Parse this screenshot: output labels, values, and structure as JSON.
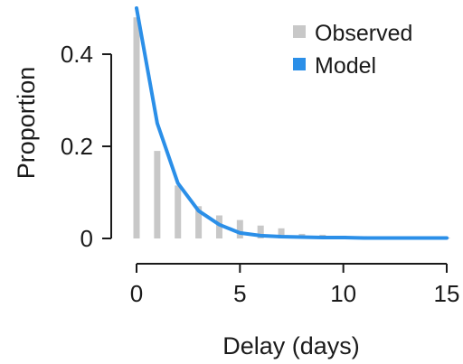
{
  "chart_data": {
    "type": "bar",
    "xlabel": "Delay (days)",
    "ylabel": "Proportion",
    "xlim": [
      0,
      15
    ],
    "ylim": [
      0,
      0.5
    ],
    "xticks": [
      0,
      5,
      10,
      15
    ],
    "yticks": [
      0,
      0.2,
      0.4
    ],
    "x": [
      0,
      1,
      2,
      3,
      4,
      5,
      6,
      7,
      8,
      9,
      10,
      11,
      12,
      13,
      14,
      15
    ],
    "series": [
      {
        "name": "Observed",
        "kind": "bar",
        "color": "#c8c8c8",
        "values": [
          0.48,
          0.19,
          0.115,
          0.07,
          0.05,
          0.04,
          0.028,
          0.022,
          0.01,
          0.008,
          0.006,
          0.005,
          0.004,
          0.003,
          0.003,
          0.002
        ]
      },
      {
        "name": "Model",
        "kind": "line",
        "color": "#2b8fe8",
        "values": [
          0.5,
          0.25,
          0.12,
          0.06,
          0.03,
          0.012,
          0.006,
          0.004,
          0.003,
          0.002,
          0.002,
          0.001,
          0.001,
          0.001,
          0.001,
          0.001
        ]
      }
    ],
    "legend": {
      "placement": "top-right",
      "entries": [
        "Observed",
        "Model"
      ]
    },
    "grid": false
  }
}
